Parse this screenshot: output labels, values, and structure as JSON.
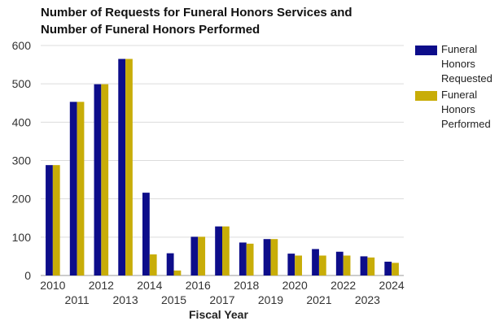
{
  "chart_data": {
    "type": "bar",
    "title": [
      "Number of Requests for Funeral Honors Services and",
      "Number of Funeral Honors Performed"
    ],
    "xlabel": "Fiscal Year",
    "ylabel": "",
    "ylim": [
      0,
      600
    ],
    "yticks": [
      0,
      100,
      200,
      300,
      400,
      500,
      600
    ],
    "grid": true,
    "legend_position": "right",
    "categories": [
      "2010",
      "2011",
      "2012",
      "2013",
      "2014",
      "2015",
      "2016",
      "2017",
      "2018",
      "2019",
      "2020",
      "2021",
      "2022",
      "2023",
      "2024"
    ],
    "series": [
      {
        "name": "Funeral Honors Requested",
        "color": "#0d0d8a",
        "values": [
          288,
          453,
          499,
          565,
          216,
          58,
          101,
          128,
          86,
          95,
          57,
          69,
          62,
          50,
          36
        ]
      },
      {
        "name": "Funeral Honors Performed",
        "color": "#c8ad08",
        "values": [
          288,
          453,
          499,
          565,
          55,
          13,
          101,
          128,
          83,
          95,
          52,
          52,
          52,
          47,
          33
        ]
      }
    ]
  }
}
